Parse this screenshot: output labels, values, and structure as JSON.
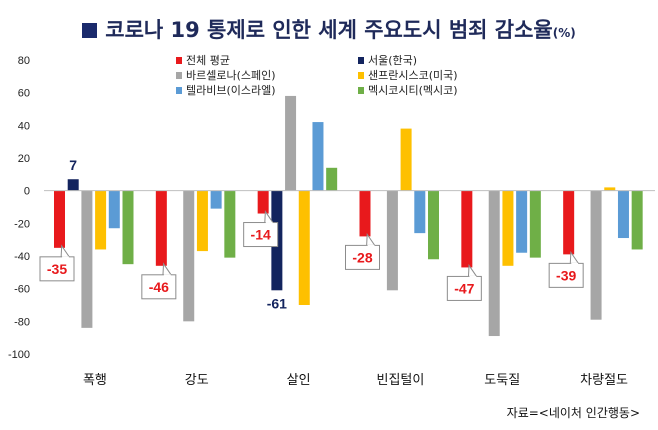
{
  "title": "코로나 19 통제로 인한 세계 주요도시 범죄 감소율",
  "title_unit": "(%)",
  "source": "자료=<네이처 인간행동>",
  "chart_data": {
    "type": "bar",
    "categories": [
      "폭행",
      "강도",
      "살인",
      "빈집털이",
      "도둑질",
      "차량절도"
    ],
    "ylim": [
      -100,
      80
    ],
    "yticks": [
      -100,
      -80,
      -60,
      -40,
      -20,
      0,
      20,
      40,
      60,
      80
    ],
    "grid": false,
    "legend_position": "top",
    "series": [
      {
        "name": "전체 평균",
        "color": "#e8191c",
        "values": [
          -35,
          -46,
          -14,
          -28,
          -47,
          -39
        ]
      },
      {
        "name": "서울(한국)",
        "color": "#13245e",
        "values": [
          7,
          null,
          -61,
          null,
          null,
          null
        ]
      },
      {
        "name": "바르셀로나(스페인)",
        "color": "#a6a6a6",
        "values": [
          -84,
          -80,
          58,
          -61,
          -89,
          -79
        ]
      },
      {
        "name": "샌프란시스코(미국)",
        "color": "#fec000",
        "values": [
          -36,
          -37,
          -70,
          38,
          -46,
          2
        ]
      },
      {
        "name": "텔라비브(이스라엘)",
        "color": "#5b9bd5",
        "values": [
          -23,
          -11,
          42,
          -26,
          -38,
          -29
        ]
      },
      {
        "name": "멕시코시티(멕시코)",
        "color": "#6faf47",
        "values": [
          -45,
          -41,
          14,
          -42,
          -41,
          -36
        ]
      }
    ],
    "callouts": [
      {
        "label": "-35",
        "series": 0,
        "category": 0
      },
      {
        "label": "-46",
        "series": 0,
        "category": 1
      },
      {
        "label": "-14",
        "series": 0,
        "category": 2
      },
      {
        "label": "-28",
        "series": 0,
        "category": 3
      },
      {
        "label": "-47",
        "series": 0,
        "category": 4
      },
      {
        "label": "-39",
        "series": 0,
        "category": 5
      }
    ],
    "plain_labels": [
      {
        "label": "7",
        "series": 1,
        "category": 0
      },
      {
        "label": "-61",
        "series": 1,
        "category": 2
      }
    ]
  }
}
